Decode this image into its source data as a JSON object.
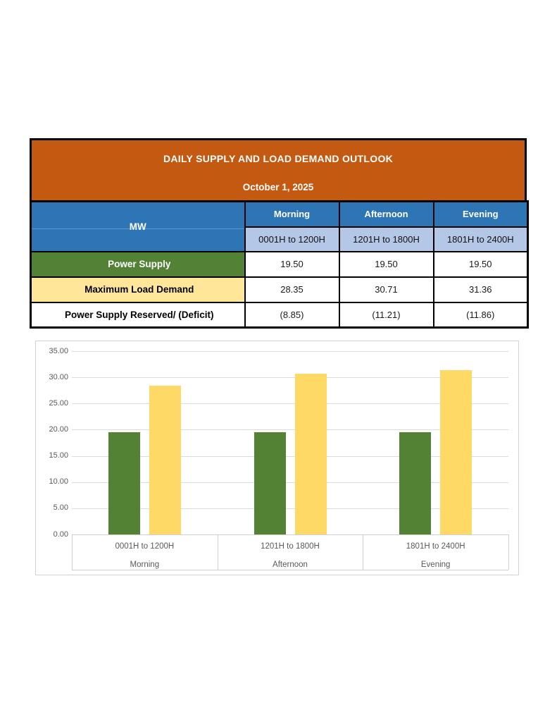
{
  "table": {
    "title": "DAILY SUPPLY AND LOAD DEMAND OUTLOOK",
    "date": "October 1, 2025",
    "unit_label": "MW",
    "columns": [
      {
        "period": "Morning",
        "range": "0001H to 1200H"
      },
      {
        "period": "Afternoon",
        "range": "1201H to 1800H"
      },
      {
        "period": "Evening",
        "range": "1801H to 2400H"
      }
    ],
    "rows": [
      {
        "label": "Power Supply",
        "values": [
          "19.50",
          "19.50",
          "19.50"
        ]
      },
      {
        "label": "Maximum Load Demand",
        "values": [
          "28.35",
          "30.71",
          "31.36"
        ]
      },
      {
        "label": "Power Supply Reserved/ (Deficit)",
        "values": [
          "(8.85)",
          "(11.21)",
          "(11.86)"
        ]
      }
    ]
  },
  "chart_data": {
    "type": "bar",
    "categories": [
      "0001H to 1200H",
      "1201H to 1800H",
      "1801H to 2400H"
    ],
    "category_groups": [
      "Morning",
      "Afternoon",
      "Evening"
    ],
    "series": [
      {
        "name": "Power Supply",
        "color": "#548235",
        "values": [
          19.5,
          19.5,
          19.5
        ]
      },
      {
        "name": "Maximum Load Demand",
        "color": "#FFD966",
        "values": [
          28.35,
          30.71,
          31.36
        ]
      }
    ],
    "title": "",
    "xlabel": "",
    "ylabel": "",
    "ylim": [
      0,
      35
    ],
    "ytick_step": 5,
    "yticks": [
      "35.00",
      "30.00",
      "25.00",
      "20.00",
      "15.00",
      "10.00",
      "5.00",
      "0.00"
    ],
    "grid": true,
    "legend": "none"
  },
  "colors": {
    "header_orange": "#C45911",
    "header_blue": "#2E75B6",
    "subheader_light_blue": "#B4C7E7",
    "supply_green": "#538135",
    "demand_yellow": "#FFE699",
    "bar_green": "#548235",
    "bar_yellow": "#FFD966",
    "gridline_gray": "#DBDBDB",
    "axis_text_gray": "#595959",
    "table_border": "#000000"
  }
}
